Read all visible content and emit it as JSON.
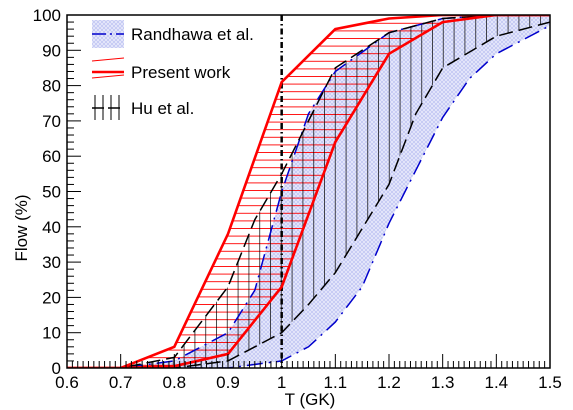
{
  "chart_data": {
    "type": "line",
    "title": "",
    "xlabel": "T (GK)",
    "ylabel": "Flow (%)",
    "xlim": [
      0.6,
      1.5
    ],
    "ylim": [
      0,
      100
    ],
    "x_ticks": [
      "0.6",
      "0.7",
      "0.8",
      "0.9",
      "1",
      "1.1",
      "1.2",
      "1.3",
      "1.4",
      "1.5"
    ],
    "y_ticks": [
      "0",
      "10",
      "20",
      "30",
      "40",
      "50",
      "60",
      "70",
      "80",
      "90",
      "100"
    ],
    "grid": false,
    "legend_position": "top-left",
    "reference_line_x": 1.0,
    "series": [
      {
        "name": "Randhawa et al.",
        "color": "#0000cc",
        "style": "dash-dot band",
        "fill": "crosshatch light blue",
        "upper": [
          [
            0.6,
            0
          ],
          [
            0.7,
            0
          ],
          [
            0.8,
            2
          ],
          [
            0.9,
            10
          ],
          [
            0.95,
            22
          ],
          [
            1.0,
            50
          ],
          [
            1.05,
            72
          ],
          [
            1.1,
            84
          ],
          [
            1.2,
            95
          ],
          [
            1.3,
            99
          ],
          [
            1.4,
            100
          ],
          [
            1.5,
            100
          ]
        ],
        "lower": [
          [
            0.6,
            0
          ],
          [
            0.7,
            0
          ],
          [
            0.8,
            0
          ],
          [
            0.9,
            0
          ],
          [
            1.0,
            2
          ],
          [
            1.05,
            6
          ],
          [
            1.1,
            13
          ],
          [
            1.15,
            23
          ],
          [
            1.2,
            41
          ],
          [
            1.25,
            56
          ],
          [
            1.3,
            71
          ],
          [
            1.35,
            82
          ],
          [
            1.4,
            89
          ],
          [
            1.45,
            93
          ],
          [
            1.5,
            97
          ]
        ]
      },
      {
        "name": "Present work",
        "color": "#ff0000",
        "style": "solid band",
        "fill": "horizontal hatch red",
        "upper": [
          [
            0.6,
            0
          ],
          [
            0.7,
            0
          ],
          [
            0.8,
            6
          ],
          [
            0.9,
            38
          ],
          [
            1.0,
            81
          ],
          [
            1.1,
            96
          ],
          [
            1.2,
            99
          ],
          [
            1.3,
            100
          ],
          [
            1.4,
            100
          ],
          [
            1.5,
            100
          ]
        ],
        "lower": [
          [
            0.6,
            0
          ],
          [
            0.7,
            0
          ],
          [
            0.8,
            0.5
          ],
          [
            0.9,
            4
          ],
          [
            1.0,
            23
          ],
          [
            1.1,
            64
          ],
          [
            1.2,
            89
          ],
          [
            1.3,
            98
          ],
          [
            1.4,
            100
          ],
          [
            1.5,
            100
          ]
        ]
      },
      {
        "name": "Hu et al.",
        "color": "#000000",
        "style": "dashed band",
        "fill": "vertical hatch black",
        "upper": [
          [
            0.6,
            0
          ],
          [
            0.7,
            0
          ],
          [
            0.8,
            3
          ],
          [
            0.9,
            23
          ],
          [
            0.95,
            42
          ],
          [
            1.0,
            55
          ],
          [
            1.05,
            70
          ],
          [
            1.1,
            85
          ],
          [
            1.2,
            95
          ],
          [
            1.3,
            99
          ],
          [
            1.4,
            100
          ],
          [
            1.5,
            100
          ]
        ],
        "lower": [
          [
            0.6,
            0
          ],
          [
            0.7,
            0
          ],
          [
            0.8,
            0
          ],
          [
            0.9,
            2
          ],
          [
            1.0,
            10
          ],
          [
            1.05,
            18
          ],
          [
            1.1,
            27
          ],
          [
            1.2,
            52
          ],
          [
            1.25,
            72
          ],
          [
            1.3,
            85
          ],
          [
            1.4,
            94
          ],
          [
            1.5,
            98
          ]
        ]
      }
    ]
  }
}
